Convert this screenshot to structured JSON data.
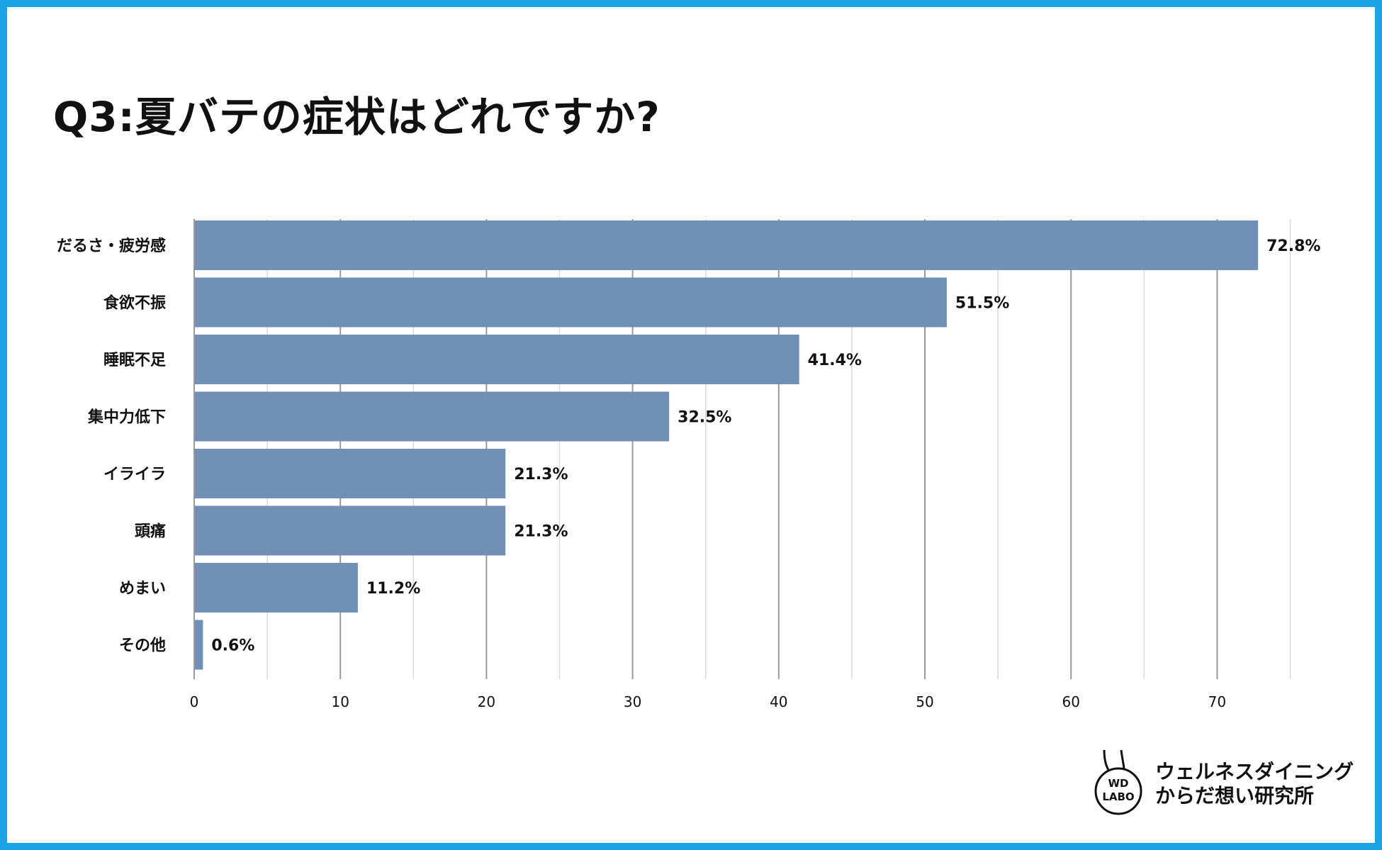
{
  "page": {
    "title": "Q3:夏バテの症状はどれですか?"
  },
  "chart_data": {
    "type": "bar",
    "orientation": "horizontal",
    "categories": [
      "だるさ・疲労感",
      "食欲不振",
      "睡眠不足",
      "集中力低下",
      "イライラ",
      "頭痛",
      "めまい",
      "その他"
    ],
    "values": [
      72.8,
      51.5,
      41.4,
      32.5,
      21.3,
      21.3,
      11.2,
      0.6
    ],
    "value_labels": [
      "72.8%",
      "51.5%",
      "41.4%",
      "32.5%",
      "21.3%",
      "21.3%",
      "11.2%",
      "0.6%"
    ],
    "x_ticks": [
      0,
      10,
      20,
      30,
      40,
      50,
      60,
      70
    ],
    "xlim": [
      0,
      75
    ],
    "grid": true,
    "bar_color": "#7190b5",
    "title": "Q3:夏バテの症状はどれですか?"
  },
  "logo": {
    "badge_line1": "WD",
    "badge_line2": "LABO",
    "name_line1": "ウェルネスダイニング",
    "name_line2": "からだ想い研究所"
  },
  "colors": {
    "border": "#1aa3e6",
    "bar": "#7190b5",
    "grid": "#d9d9d9",
    "major_grid": "#999999",
    "text": "#111111"
  }
}
